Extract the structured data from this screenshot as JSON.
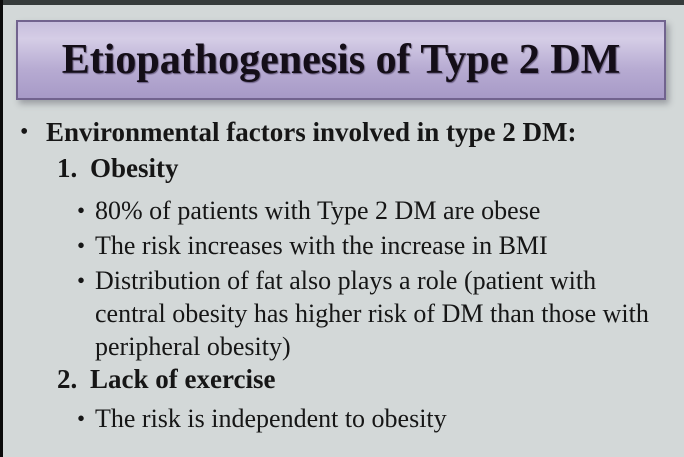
{
  "slide": {
    "title": "Etiopathogenesis of Type 2 DM",
    "bullet_glyph": "•",
    "content": [
      {
        "type": "bullet-l1",
        "text": "Environmental factors involved in type 2 DM:"
      },
      {
        "type": "numbered",
        "marker": "1.",
        "text": "Obesity"
      },
      {
        "type": "bullet-l2",
        "lines": [
          "80% of patients with Type 2 DM are obese"
        ]
      },
      {
        "type": "bullet-l2",
        "lines": [
          "The risk increases with the increase in BMI"
        ]
      },
      {
        "type": "bullet-l2",
        "lines": [
          "Distribution of fat also plays a role (patient with",
          "central obesity has higher risk of DM than those with",
          "peripheral obesity)"
        ]
      },
      {
        "type": "numbered",
        "marker": "2.",
        "text": "Lack of exercise"
      },
      {
        "type": "bullet-l2",
        "lines": [
          "The risk is independent to obesity"
        ]
      }
    ],
    "colors": {
      "bg": "#d3d8d8",
      "topbar": "#363b3b",
      "leftbar": "#0b0b0b",
      "box_border": "#71638e",
      "grad_top": "#c7bedd",
      "grad_hi": "#d5cde6",
      "grad_mid": "#b7abd2",
      "grad_bot": "#a79ac7",
      "text": "#161616",
      "title_text": "#140e18"
    }
  }
}
